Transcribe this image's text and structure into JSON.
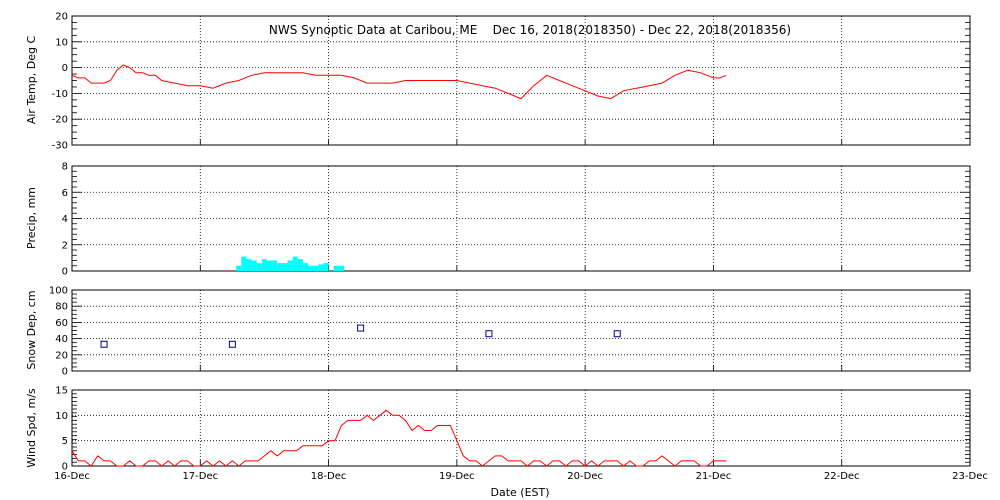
{
  "title": "NWS Synoptic Data at Caribou, ME    Dec 16, 2018(2018350) - Dec 22, 2018(2018356)",
  "xlabel": "Date (EST)",
  "x_ticks": [
    "16-Dec",
    "17-Dec",
    "18-Dec",
    "19-Dec",
    "20-Dec",
    "21-Dec",
    "22-Dec",
    "23-Dec"
  ],
  "colors": {
    "temp": "#ff0000",
    "precip": "#00ffff",
    "snow": "#000080",
    "wind": "#ff0000",
    "grid": "#000000"
  },
  "chart_data": [
    {
      "type": "line",
      "ylabel": "Air Temp, Deg C",
      "ylim": [
        -30,
        20
      ],
      "yticks": [
        20,
        10,
        0,
        -10,
        -20,
        -30
      ],
      "grid": true,
      "x_unit": "days after 16-Dec 00:00",
      "series": [
        {
          "x": [
            0,
            0.05,
            0.1,
            0.15,
            0.2,
            0.25,
            0.3,
            0.35,
            0.4,
            0.45,
            0.5,
            0.55,
            0.6,
            0.65,
            0.7,
            0.8,
            0.9,
            1.0,
            1.1,
            1.2,
            1.3,
            1.4,
            1.5,
            1.6,
            1.7,
            1.8,
            1.9,
            2.0,
            2.1,
            2.2,
            2.3,
            2.4,
            2.5,
            2.6,
            2.7,
            2.8,
            2.9,
            3.0,
            3.1,
            3.2,
            3.3,
            3.4,
            3.5,
            3.6,
            3.7,
            3.8,
            3.9,
            4.0,
            4.1,
            4.2,
            4.3,
            4.4,
            4.5,
            4.6,
            4.7,
            4.8,
            4.9,
            5.0,
            5.05,
            5.1
          ],
          "values": [
            -3,
            -4,
            -4,
            -6,
            -6,
            -6,
            -5,
            -1,
            1,
            0,
            -2,
            -2,
            -3,
            -3,
            -5,
            -6,
            -7,
            -7,
            -8,
            -6,
            -5,
            -3,
            -2,
            -2,
            -2,
            -2,
            -3,
            -3,
            -3,
            -4,
            -6,
            -6,
            -6,
            -5,
            -5,
            -5,
            -5,
            -5,
            -6,
            -7,
            -8,
            -10,
            -12,
            -7,
            -3,
            -5,
            -7,
            -9,
            -11,
            -12,
            -9,
            -8,
            -7,
            -6,
            -3,
            -1,
            -2,
            -4,
            -4,
            -3
          ]
        }
      ]
    },
    {
      "type": "bar",
      "ylabel": "Precip, mm",
      "ylim": [
        0,
        8
      ],
      "yticks": [
        8,
        6,
        4,
        2,
        0
      ],
      "grid": true,
      "x_unit": "days after 16-Dec 00:00",
      "bars": [
        {
          "x": 1.28,
          "w": 0.04,
          "v": 0.4
        },
        {
          "x": 1.32,
          "w": 0.04,
          "v": 1.1
        },
        {
          "x": 1.36,
          "w": 0.04,
          "v": 0.9
        },
        {
          "x": 1.4,
          "w": 0.04,
          "v": 0.8
        },
        {
          "x": 1.44,
          "w": 0.04,
          "v": 0.6
        },
        {
          "x": 1.48,
          "w": 0.04,
          "v": 0.9
        },
        {
          "x": 1.52,
          "w": 0.04,
          "v": 0.8
        },
        {
          "x": 1.56,
          "w": 0.04,
          "v": 0.8
        },
        {
          "x": 1.6,
          "w": 0.04,
          "v": 0.6
        },
        {
          "x": 1.64,
          "w": 0.04,
          "v": 0.6
        },
        {
          "x": 1.68,
          "w": 0.04,
          "v": 0.8
        },
        {
          "x": 1.72,
          "w": 0.04,
          "v": 1.1
        },
        {
          "x": 1.76,
          "w": 0.04,
          "v": 0.9
        },
        {
          "x": 1.8,
          "w": 0.04,
          "v": 0.6
        },
        {
          "x": 1.84,
          "w": 0.04,
          "v": 0.4
        },
        {
          "x": 1.88,
          "w": 0.04,
          "v": 0.4
        },
        {
          "x": 1.92,
          "w": 0.04,
          "v": 0.5
        },
        {
          "x": 1.96,
          "w": 0.04,
          "v": 0.6
        },
        {
          "x": 2.04,
          "w": 0.04,
          "v": 0.4
        },
        {
          "x": 2.08,
          "w": 0.04,
          "v": 0.4
        }
      ]
    },
    {
      "type": "scatter",
      "ylabel": "Snow Dep, cm",
      "ylim": [
        0,
        100
      ],
      "yticks": [
        100,
        80,
        60,
        40,
        20,
        0
      ],
      "grid": true,
      "x_unit": "days after 16-Dec 00:00",
      "series": [
        {
          "x": [
            0.25,
            1.25,
            2.25,
            3.25,
            4.25
          ],
          "values": [
            33,
            33,
            53,
            46,
            46
          ]
        }
      ]
    },
    {
      "type": "line",
      "ylabel": "Wind Spd, m/s",
      "ylim": [
        0,
        15
      ],
      "yticks": [
        15,
        10,
        5,
        0
      ],
      "grid": true,
      "x_unit": "days after 16-Dec 00:00",
      "series": [
        {
          "x": [
            0,
            0.05,
            0.1,
            0.15,
            0.2,
            0.25,
            0.3,
            0.35,
            0.4,
            0.45,
            0.5,
            0.55,
            0.6,
            0.65,
            0.7,
            0.75,
            0.8,
            0.85,
            0.9,
            0.95,
            1.0,
            1.05,
            1.1,
            1.15,
            1.2,
            1.25,
            1.3,
            1.35,
            1.4,
            1.45,
            1.5,
            1.55,
            1.6,
            1.65,
            1.7,
            1.75,
            1.8,
            1.85,
            1.9,
            1.95,
            2.0,
            2.05,
            2.1,
            2.15,
            2.2,
            2.25,
            2.3,
            2.35,
            2.4,
            2.45,
            2.5,
            2.55,
            2.6,
            2.65,
            2.7,
            2.75,
            2.8,
            2.85,
            2.9,
            2.95,
            3.0,
            3.05,
            3.1,
            3.15,
            3.2,
            3.25,
            3.3,
            3.35,
            3.4,
            3.45,
            3.5,
            3.55,
            3.6,
            3.65,
            3.7,
            3.75,
            3.8,
            3.85,
            3.9,
            3.95,
            4.0,
            4.05,
            4.1,
            4.15,
            4.2,
            4.25,
            4.3,
            4.35,
            4.4,
            4.45,
            4.5,
            4.55,
            4.6,
            4.65,
            4.7,
            4.75,
            4.8,
            4.85,
            4.9,
            4.95,
            5.0,
            5.05,
            5.1
          ],
          "values": [
            3,
            1,
            1,
            0,
            2,
            1,
            1,
            0,
            0,
            1,
            0,
            0,
            1,
            1,
            0,
            1,
            0,
            1,
            1,
            0,
            0,
            1,
            0,
            1,
            0,
            1,
            0,
            1,
            1,
            1,
            2,
            3,
            2,
            3,
            3,
            3,
            4,
            4,
            4,
            4,
            5,
            5,
            8,
            9,
            9,
            9,
            10,
            9,
            10,
            11,
            10,
            10,
            9,
            7,
            8,
            7,
            7,
            8,
            8,
            8,
            5,
            2,
            1,
            1,
            0,
            1,
            2,
            2,
            1,
            1,
            1,
            0,
            1,
            1,
            0,
            1,
            1,
            0,
            1,
            1,
            0,
            1,
            0,
            1,
            1,
            1,
            0,
            1,
            0,
            0,
            1,
            1,
            2,
            1,
            0,
            1,
            1,
            1,
            0,
            0,
            1,
            1,
            1
          ]
        }
      ]
    }
  ]
}
